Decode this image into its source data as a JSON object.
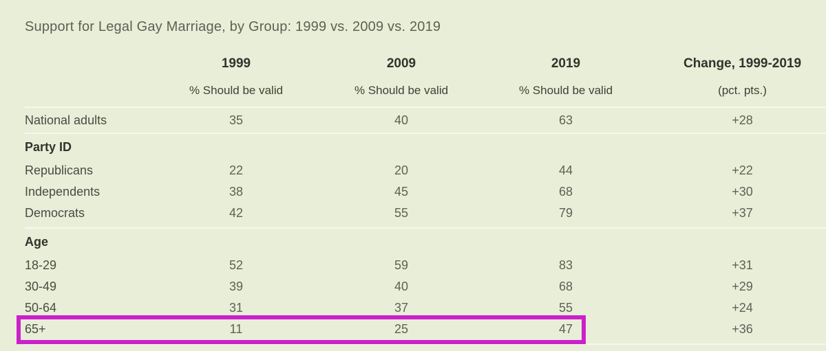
{
  "chart_data": {
    "type": "table",
    "title": "Support for Legal Gay Marriage, by Group: 1999 vs. 2009 vs. 2019",
    "columns": [
      {
        "label": "1999",
        "sublabel": "% Should be valid"
      },
      {
        "label": "2009",
        "sublabel": "% Should be valid"
      },
      {
        "label": "2019",
        "sublabel": "% Should be valid"
      },
      {
        "label": "Change, 1999-2019",
        "sublabel": "(pct. pts.)"
      }
    ],
    "groups": [
      {
        "header": "",
        "rows": [
          {
            "label": "National adults",
            "values": [
              "35",
              "40",
              "63",
              "+28"
            ]
          }
        ]
      },
      {
        "header": "Party ID",
        "rows": [
          {
            "label": "Republicans",
            "values": [
              "22",
              "20",
              "44",
              "+22"
            ]
          },
          {
            "label": "Independents",
            "values": [
              "38",
              "45",
              "68",
              "+30"
            ]
          },
          {
            "label": "Democrats",
            "values": [
              "42",
              "55",
              "79",
              "+37"
            ]
          }
        ]
      },
      {
        "header": "Age",
        "rows": [
          {
            "label": "18-29",
            "values": [
              "52",
              "59",
              "83",
              "+31"
            ]
          },
          {
            "label": "30-49",
            "values": [
              "39",
              "40",
              "68",
              "+29"
            ]
          },
          {
            "label": "50-64",
            "values": [
              "31",
              "37",
              "55",
              "+24"
            ]
          },
          {
            "label": "65+",
            "values": [
              "11",
              "25",
              "47",
              "+36"
            ],
            "highlighted": true
          }
        ]
      }
    ],
    "annotation": {
      "type": "highlight-box",
      "target_row": "65+",
      "color": "#cb20cb",
      "covers_columns": [
        "label",
        "1999",
        "2009",
        "2019"
      ]
    },
    "layout": {
      "grid": "off",
      "value_alignment": "center"
    }
  },
  "colors": {
    "background": "#e9eed8",
    "divider": "#f6f8ee",
    "title_text": "#5c6155",
    "header_text": "#30342c",
    "body_text": "#484c43",
    "highlight": "#cb20cb"
  }
}
